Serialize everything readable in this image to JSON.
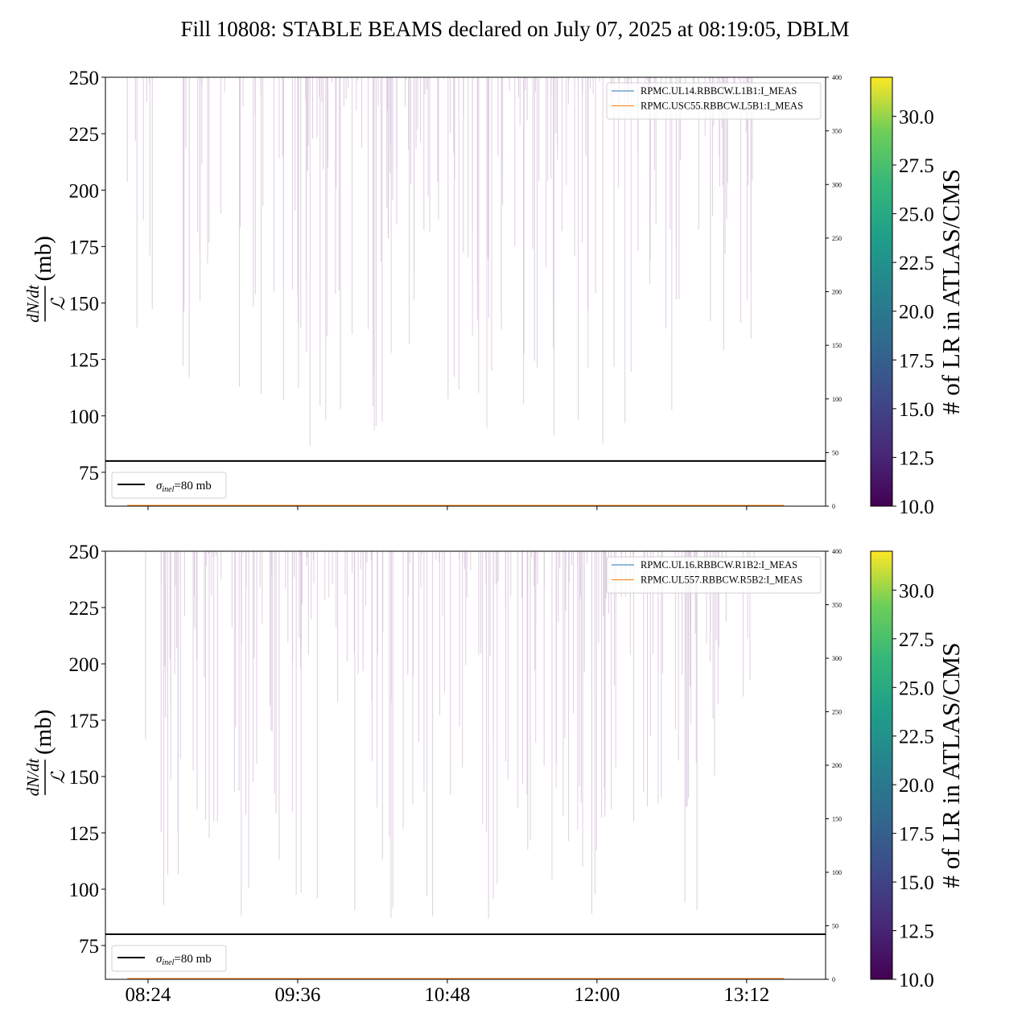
{
  "title": "Fill 10808: STABLE BEAMS declared on July 07, 2025 at 08:19:05, DBLM",
  "chart_data": [
    {
      "type": "line",
      "ylabel_num": "dN/dt",
      "ylabel_den": "ℒ",
      "ylabel_unit": "(mb)",
      "ylim": [
        60,
        250
      ],
      "yticks": [
        "75",
        "100",
        "125",
        "150",
        "175",
        "200",
        "225",
        "250"
      ],
      "y2lim": [
        0,
        400
      ],
      "y2ticks": [
        "0",
        "50",
        "100",
        "150",
        "200",
        "250",
        "300",
        "350",
        "400"
      ],
      "xticks": [
        "08:24",
        "09:36",
        "10:48",
        "12:00",
        "13:12"
      ],
      "xtick_minutes": [
        504,
        576,
        648,
        720,
        792
      ],
      "xlim_minutes": [
        483.5,
        830
      ],
      "reference_line": {
        "value": 80,
        "label_sym": "σ",
        "label_sub": "inel",
        "label_rest": "=80 mb",
        "color": "#000000"
      },
      "series": [
        {
          "name": "RPMC.UL14.RBBCW.L1B1:I_MEAS",
          "color": "#1f77b4",
          "value": 0
        },
        {
          "name": "RPMC.USC55.RBBCW.L5B1:I_MEAS",
          "color": "#ff7f0e",
          "value": 0
        }
      ],
      "colorbar": {
        "label": "# of LR in ATLAS/CMS",
        "ticks": [
          "10.0",
          "12.5",
          "15.0",
          "17.5",
          "20.0",
          "22.5",
          "25.0",
          "27.5",
          "30.0"
        ],
        "range": [
          10,
          32
        ]
      }
    },
    {
      "type": "line",
      "ylabel_num": "dN/dt",
      "ylabel_den": "ℒ",
      "ylabel_unit": "(mb)",
      "ylim": [
        60,
        250
      ],
      "yticks": [
        "75",
        "100",
        "125",
        "150",
        "175",
        "200",
        "225",
        "250"
      ],
      "y2lim": [
        0,
        400
      ],
      "y2ticks": [
        "0",
        "50",
        "100",
        "150",
        "200",
        "250",
        "300",
        "350",
        "400"
      ],
      "xticks": [
        "08:24",
        "09:36",
        "10:48",
        "12:00",
        "13:12"
      ],
      "xtick_minutes": [
        504,
        576,
        648,
        720,
        792
      ],
      "xlim_minutes": [
        483.5,
        830
      ],
      "reference_line": {
        "value": 80,
        "label_sym": "σ",
        "label_sub": "inel",
        "label_rest": "=80 mb",
        "color": "#000000"
      },
      "series": [
        {
          "name": "RPMC.UL16.RBBCW.R1B2:I_MEAS",
          "color": "#1f77b4",
          "value": 0
        },
        {
          "name": "RPMC.UL557.RBBCW.R5B2:I_MEAS",
          "color": "#ff7f0e",
          "value": 0
        }
      ],
      "colorbar": {
        "label": "# of LR in ATLAS/CMS",
        "ticks": [
          "10.0",
          "12.5",
          "15.0",
          "17.5",
          "20.0",
          "22.5",
          "25.0",
          "27.5",
          "30.0"
        ],
        "range": [
          10,
          32
        ]
      }
    }
  ]
}
